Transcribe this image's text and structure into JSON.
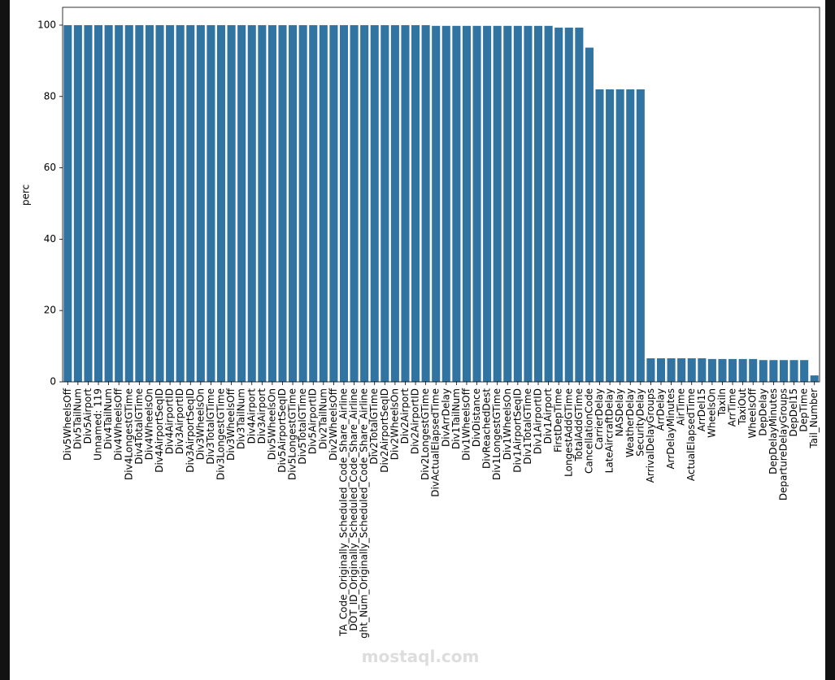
{
  "chart_data": {
    "type": "bar",
    "y_label": "perc",
    "color": "#3274a1",
    "categories": [
      "Div5WheelsOff",
      "Div5TailNum",
      "Div5Airport",
      "Unnamed: 119",
      "Div4TailNum",
      "Div4WheelsOff",
      "Div4LongestGTime",
      "Div4TotalGTime",
      "Div4WheelsOn",
      "Div4AirportSeqID",
      "Div4AirportID",
      "Div3AirportID",
      "Div3AirportSeqID",
      "Div3WheelsOn",
      "Div3TotalGTime",
      "Div3LongestGTime",
      "Div3WheelsOff",
      "Div3TailNum",
      "Div4Airport",
      "Div3Airport",
      "Div5WheelsOn",
      "Div5AirportSeqID",
      "Div5LongestGTime",
      "Div5TotalGTime",
      "Div5AirportID",
      "Div2TailNum",
      "Div2WheelsOff",
      "TA_Code_Originally_Scheduled_Code_Share_Airline",
      "DOT_ID_Originally_Scheduled_Code_Share_Airline",
      "ght_Num_Originally_Scheduled_Code_Share_Airline",
      "Div2TotalGTime",
      "Div2AirportSeqID",
      "Div2WheelsOn",
      "Div2Airport",
      "Div2AirportID",
      "Div2LongestGTime",
      "DivActualElapsedTime",
      "DivArrDelay",
      "Div1TailNum",
      "Div1WheelsOff",
      "DivDistance",
      "DivReachedDest",
      "Div1LongestGTime",
      "Div1WheelsOn",
      "Div1AirportSeqID",
      "Div1TotalGTime",
      "Div1AirportID",
      "Div1Airport",
      "FirstDepTime",
      "LongestAddGTime",
      "TotalAddGTime",
      "CancellationCode",
      "CarrierDelay",
      "LateAircraftDelay",
      "NASDelay",
      "WeatherDelay",
      "SecurityDelay",
      "ArrivalDelayGroups",
      "ArrDelay",
      "ArrDelayMinutes",
      "AirTime",
      "ActualElapsedTime",
      "ArrDel15",
      "WheelsOn",
      "TaxiIn",
      "ArrTime",
      "TaxiOut",
      "WheelsOff",
      "DepDelay",
      "DepDelayMinutes",
      "DepartureDelayGroups",
      "DepDel15",
      "DepTime",
      "Tail_Number"
    ],
    "values": [
      100,
      100,
      100,
      100,
      100,
      100,
      100,
      100,
      100,
      100,
      100,
      100,
      100,
      100,
      100,
      100,
      100,
      100,
      100,
      100,
      100,
      100,
      100,
      100,
      100,
      100,
      100,
      100,
      100,
      100,
      100,
      100,
      100,
      100,
      100,
      100,
      99.8,
      99.8,
      99.8,
      99.8,
      99.8,
      99.8,
      99.8,
      99.8,
      99.8,
      99.8,
      99.8,
      99.8,
      99.3,
      99.3,
      99.3,
      93.7,
      82,
      82,
      82,
      82,
      82,
      6.6,
      6.6,
      6.6,
      6.6,
      6.6,
      6.6,
      6.4,
      6.4,
      6.4,
      6.4,
      6.4,
      6.1,
      6.1,
      6.1,
      6.1,
      6.1,
      1.8
    ],
    "ylim": [
      0,
      105
    ],
    "yticks": [
      0,
      20,
      40,
      60,
      80,
      100
    ]
  },
  "watermark": "mostaql.com"
}
